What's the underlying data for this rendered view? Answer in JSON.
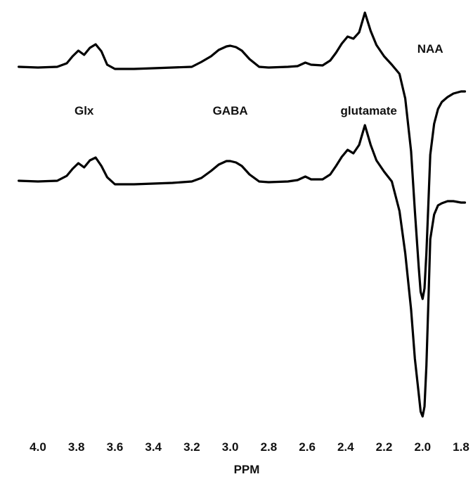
{
  "chart_data": {
    "type": "line",
    "xlabel": "PPM",
    "x_reversed": true,
    "xlim": [
      4.1,
      1.78
    ],
    "x_ticks": [
      "4.0",
      "3.8",
      "3.6",
      "3.4",
      "3.2",
      "3.0",
      "2.8",
      "2.6",
      "2.4",
      "2.2",
      "2.0",
      "1.8"
    ],
    "y_axis_shown": false,
    "grid": false,
    "legend": "none",
    "annotations": [
      {
        "text": "NAA",
        "x": 1.96
      },
      {
        "text": "Glx",
        "x": 3.76
      },
      {
        "text": "GABA",
        "x": 3.0
      },
      {
        "text": "glutamate",
        "x": 2.28
      }
    ],
    "series": [
      {
        "role": "upper",
        "color": "#000000",
        "x": [
          4.1,
          4.0,
          3.9,
          3.85,
          3.82,
          3.79,
          3.76,
          3.73,
          3.7,
          3.67,
          3.64,
          3.6,
          3.5,
          3.4,
          3.3,
          3.2,
          3.15,
          3.1,
          3.06,
          3.02,
          3.0,
          2.97,
          2.94,
          2.9,
          2.85,
          2.8,
          2.7,
          2.65,
          2.61,
          2.58,
          2.52,
          2.48,
          2.45,
          2.42,
          2.39,
          2.36,
          2.33,
          2.3,
          2.27,
          2.24,
          2.2,
          2.16,
          2.12,
          2.09,
          2.06,
          2.04,
          2.02,
          2.01,
          2.0,
          1.99,
          1.98,
          1.97,
          1.96,
          1.94,
          1.92,
          1.9,
          1.87,
          1.84,
          1.8,
          1.78
        ],
        "y": [
          95,
          96,
          95,
          90,
          80,
          72,
          78,
          68,
          63,
          73,
          92,
          98,
          98,
          97,
          96,
          95,
          88,
          80,
          71,
          66,
          65,
          67,
          72,
          84,
          95,
          96,
          95,
          94,
          89,
          92,
          93,
          86,
          75,
          62,
          52,
          55,
          46,
          18,
          44,
          64,
          80,
          92,
          105,
          140,
          215,
          300,
          380,
          415,
          425,
          410,
          360,
          290,
          220,
          176,
          155,
          145,
          138,
          133,
          130,
          130
        ]
      },
      {
        "role": "lower",
        "color": "#000000",
        "x": [
          4.1,
          4.0,
          3.9,
          3.85,
          3.82,
          3.79,
          3.76,
          3.73,
          3.7,
          3.67,
          3.64,
          3.6,
          3.5,
          3.4,
          3.3,
          3.2,
          3.15,
          3.1,
          3.06,
          3.02,
          3.0,
          2.97,
          2.94,
          2.9,
          2.85,
          2.8,
          2.7,
          2.65,
          2.61,
          2.58,
          2.52,
          2.48,
          2.45,
          2.42,
          2.39,
          2.36,
          2.33,
          2.3,
          2.27,
          2.24,
          2.2,
          2.16,
          2.12,
          2.09,
          2.06,
          2.04,
          2.02,
          2.01,
          2.0,
          1.99,
          1.98,
          1.97,
          1.96,
          1.94,
          1.92,
          1.9,
          1.87,
          1.84,
          1.8,
          1.78
        ],
        "y": [
          257,
          258,
          257,
          250,
          240,
          232,
          238,
          228,
          224,
          236,
          252,
          262,
          262,
          261,
          260,
          258,
          253,
          243,
          234,
          229,
          229,
          231,
          236,
          248,
          258,
          259,
          258,
          256,
          251,
          255,
          255,
          248,
          236,
          223,
          213,
          218,
          206,
          178,
          206,
          228,
          244,
          258,
          300,
          360,
          440,
          510,
          560,
          585,
          592,
          578,
          520,
          430,
          340,
          305,
          292,
          289,
          286,
          286,
          288,
          288
        ]
      }
    ]
  }
}
